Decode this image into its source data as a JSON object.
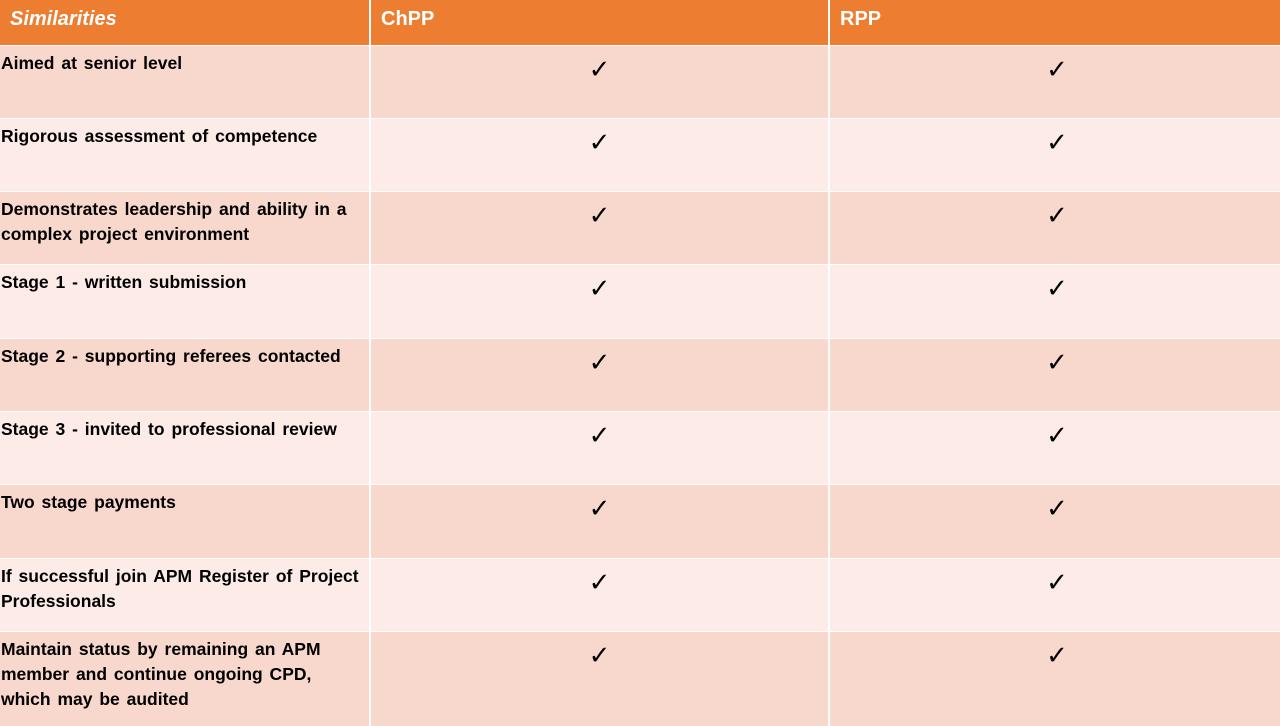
{
  "header": {
    "col1": "Similarities",
    "col2": "ChPP",
    "col3": "RPP"
  },
  "check_glyph": "✓",
  "colors": {
    "header_bg": "#ed7d31",
    "row_dark": "#f8d7cc",
    "row_light": "#fcebe6"
  },
  "rows": [
    {
      "label": "Aimed at senior level",
      "chpp": true,
      "rpp": true
    },
    {
      "label": "Rigorous assessment of competence",
      "chpp": true,
      "rpp": true
    },
    {
      "label": "Demonstrates leadership and ability in a complex project environment",
      "chpp": true,
      "rpp": true
    },
    {
      "label": "Stage 1 - written submission",
      "chpp": true,
      "rpp": true
    },
    {
      "label": "Stage 2 - supporting referees contacted",
      "chpp": true,
      "rpp": true
    },
    {
      "label": "Stage 3 - invited to professional review",
      "chpp": true,
      "rpp": true
    },
    {
      "label": "Two stage payments",
      "chpp": true,
      "rpp": true
    },
    {
      "label": "If successful join APM Register of Project Professionals",
      "chpp": true,
      "rpp": true
    },
    {
      "label": "Maintain status by remaining an APM member and continue ongoing CPD, which may be audited",
      "chpp": true,
      "rpp": true
    }
  ]
}
